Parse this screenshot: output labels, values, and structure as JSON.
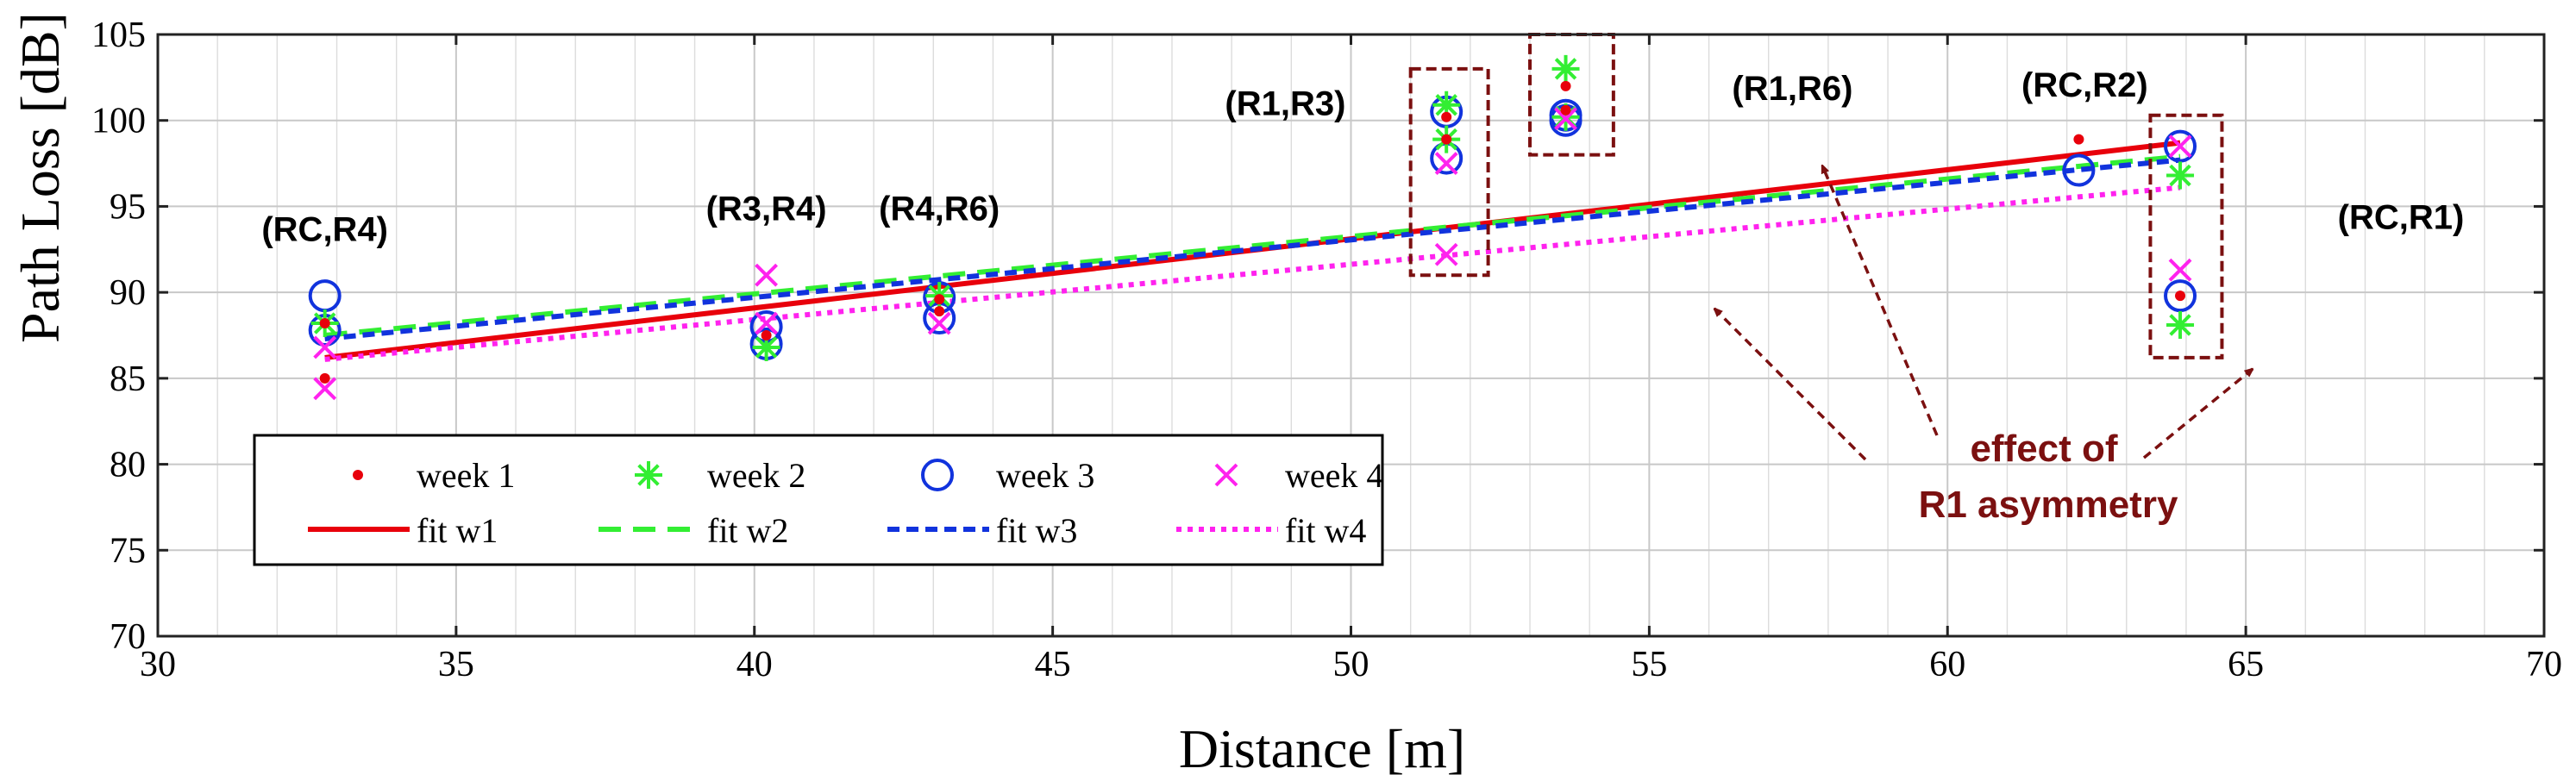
{
  "chart_data": {
    "type": "scatter",
    "xlabel": "Distance [m]",
    "ylabel": "Path Loss [dB]",
    "xlim": [
      30,
      70
    ],
    "ylim": [
      70,
      105
    ],
    "xticks": [
      30,
      35,
      40,
      45,
      50,
      55,
      60,
      65,
      70
    ],
    "yticks": [
      70,
      75,
      80,
      85,
      90,
      95,
      100,
      105
    ],
    "grid": true,
    "legend_position": "lower-left",
    "series": [
      {
        "name": "week 1",
        "marker": "dot",
        "color": "#e8000b",
        "points": [
          [
            32.8,
            85.0
          ],
          [
            32.8,
            88.2
          ],
          [
            40.2,
            87.5
          ],
          [
            43.1,
            89.6
          ],
          [
            43.1,
            88.9
          ],
          [
            51.6,
            100.2
          ],
          [
            51.6,
            98.9
          ],
          [
            53.6,
            100.6
          ],
          [
            53.6,
            102.0
          ],
          [
            62.2,
            98.9
          ],
          [
            63.9,
            89.8
          ]
        ]
      },
      {
        "name": "week 2",
        "marker": "asterisk",
        "color": "#33ee33",
        "points": [
          [
            32.8,
            88.2
          ],
          [
            40.2,
            86.8
          ],
          [
            43.1,
            89.8
          ],
          [
            51.6,
            100.9
          ],
          [
            51.6,
            98.9
          ],
          [
            53.6,
            103.0
          ],
          [
            53.6,
            100.2
          ],
          [
            63.9,
            96.8
          ],
          [
            63.9,
            88.1
          ]
        ]
      },
      {
        "name": "week 3",
        "marker": "circle",
        "color": "#1133dd",
        "points": [
          [
            32.8,
            89.8
          ],
          [
            32.8,
            87.8
          ],
          [
            40.2,
            87.0
          ],
          [
            40.2,
            88.0
          ],
          [
            43.1,
            88.5
          ],
          [
            43.1,
            89.7
          ],
          [
            51.6,
            100.5
          ],
          [
            51.6,
            97.8
          ],
          [
            53.6,
            100.0
          ],
          [
            53.6,
            100.3
          ],
          [
            62.2,
            97.1
          ],
          [
            63.9,
            98.5
          ],
          [
            63.9,
            89.8
          ]
        ]
      },
      {
        "name": "week 4",
        "marker": "x",
        "color": "#ff22ee",
        "points": [
          [
            32.8,
            84.4
          ],
          [
            32.8,
            86.8
          ],
          [
            40.2,
            91.0
          ],
          [
            40.2,
            88.2
          ],
          [
            43.1,
            88.2
          ],
          [
            51.6,
            97.5
          ],
          [
            51.6,
            92.2
          ],
          [
            53.6,
            100.1
          ],
          [
            63.9,
            91.3
          ],
          [
            63.9,
            98.5
          ]
        ]
      }
    ],
    "fits": [
      {
        "name": "fit w1",
        "style": "solid",
        "color": "#e8000b",
        "x": [
          32.8,
          63.9
        ],
        "y": [
          86.2,
          98.7
        ]
      },
      {
        "name": "fit w2",
        "style": "dashed",
        "color": "#33ee33",
        "x": [
          32.8,
          63.9
        ],
        "y": [
          87.5,
          97.9
        ]
      },
      {
        "name": "fit w3",
        "style": "short-dashed",
        "color": "#1133dd",
        "x": [
          32.8,
          63.9
        ],
        "y": [
          87.3,
          97.7
        ]
      },
      {
        "name": "fit w4",
        "style": "dotted",
        "color": "#ff22ee",
        "x": [
          32.8,
          63.9
        ],
        "y": [
          86.1,
          96.1
        ]
      }
    ],
    "legend": {
      "row1": [
        "week 1",
        "week 2",
        "week 3",
        "week 4"
      ],
      "row2": [
        "fit w1",
        "fit w2",
        "fit w3",
        "fit w4"
      ]
    },
    "pair_labels": [
      {
        "text": "(RC,R4)",
        "x": 32.8,
        "y": 93.0
      },
      {
        "text": "(R3,R4)",
        "x": 40.2,
        "y": 94.2
      },
      {
        "text": "(R4,R6)",
        "x": 43.1,
        "y": 94.2
      },
      {
        "text": "(R1,R3)",
        "x": 48.9,
        "y": 100.3
      },
      {
        "text": "(R1,R6)",
        "x": 57.4,
        "y": 101.2
      },
      {
        "text": "(RC,R2)",
        "x": 62.3,
        "y": 101.4
      },
      {
        "text": "(RC,R1)",
        "x": 67.6,
        "y": 93.7
      }
    ],
    "annotation": {
      "lines": [
        "effect of",
        "R1 asymmetry"
      ],
      "color": "#7b1010"
    }
  }
}
